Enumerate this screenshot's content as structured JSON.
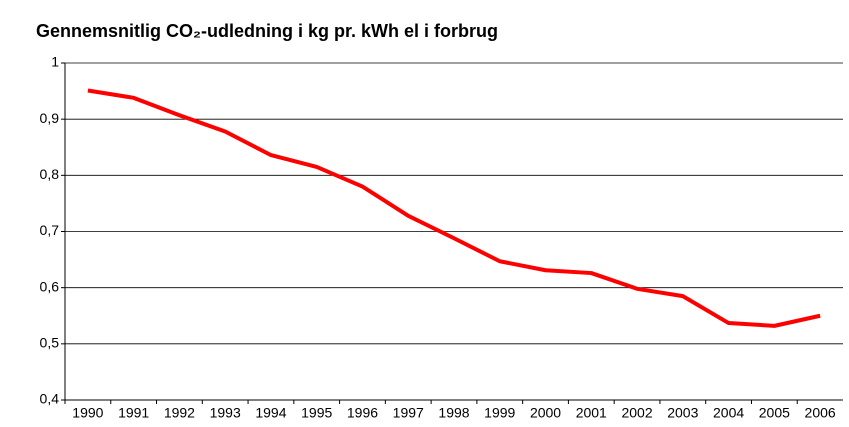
{
  "chart_data": {
    "type": "line",
    "title": "Gennemsnitlig CO₂-udledning i kg pr. kWh el i forbrug",
    "categories": [
      "1990",
      "1991",
      "1992",
      "1993",
      "1994",
      "1995",
      "1996",
      "1997",
      "1998",
      "1999",
      "2000",
      "2001",
      "2002",
      "2003",
      "2004",
      "2005",
      "2006"
    ],
    "series": [
      {
        "name": "CO₂-udledning",
        "color": "#ff0000",
        "values": [
          0.951,
          0.938,
          0.907,
          0.878,
          0.836,
          0.815,
          0.78,
          0.728,
          0.688,
          0.647,
          0.631,
          0.626,
          0.598,
          0.585,
          0.537,
          0.532,
          0.55
        ]
      }
    ],
    "ylim": [
      0.4,
      1
    ],
    "yticks": [
      {
        "value": 0.4,
        "label": "0,4"
      },
      {
        "value": 0.5,
        "label": "0,5"
      },
      {
        "value": 0.6,
        "label": "0,6"
      },
      {
        "value": 0.7,
        "label": "0,7"
      },
      {
        "value": 0.8,
        "label": "0,8"
      },
      {
        "value": 0.9,
        "label": "0,9"
      },
      1
    ],
    "grid": true
  }
}
